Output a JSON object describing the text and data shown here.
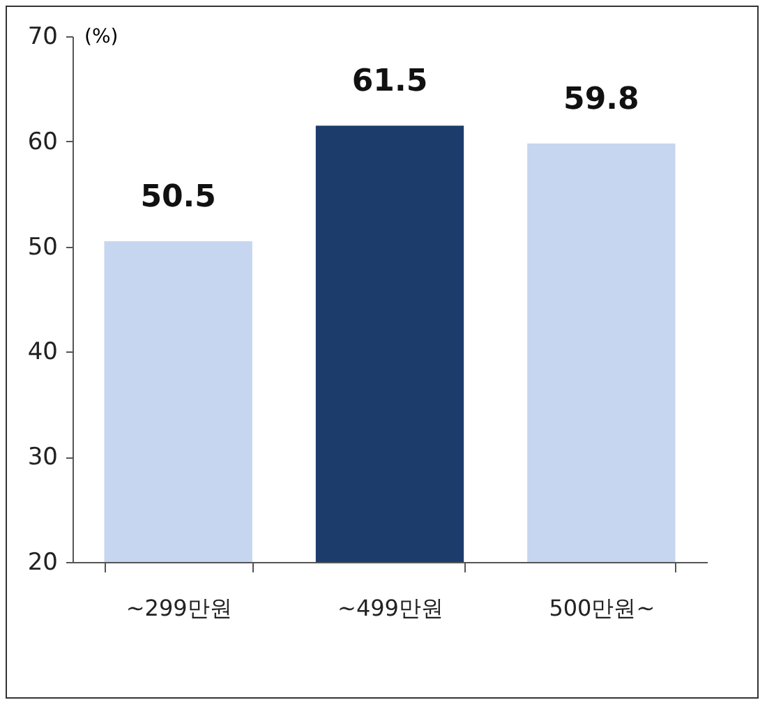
{
  "chart_data": {
    "type": "bar",
    "ylabel": "(%)",
    "categories": [
      "~299만원",
      "~499만원",
      "500만원~"
    ],
    "values": [
      50.5,
      61.5,
      59.8
    ],
    "colors": [
      "#c6d6f0",
      "#1c3c6c",
      "#c6d6f0"
    ],
    "ylim": [
      20,
      70
    ],
    "yticks": [
      20,
      30,
      40,
      50,
      60,
      70
    ],
    "data_labels": true,
    "grid": false
  }
}
